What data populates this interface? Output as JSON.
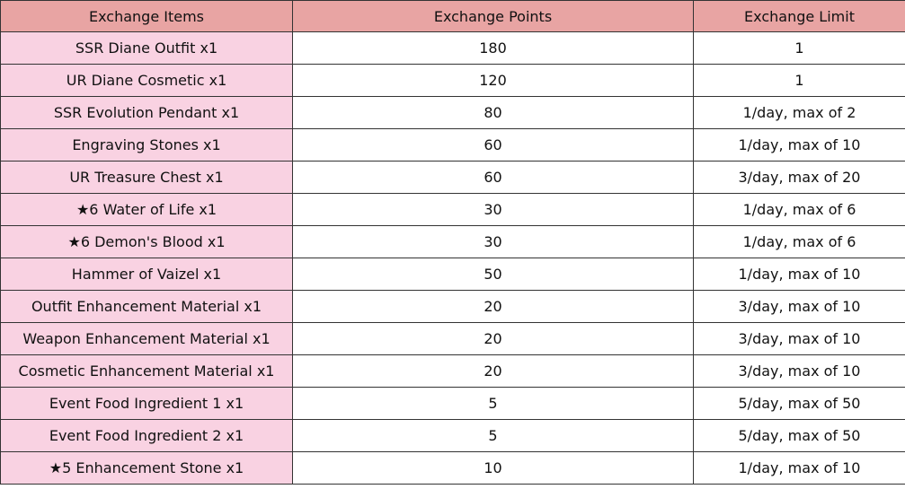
{
  "table": {
    "headers": [
      "Exchange Items",
      "Exchange Points",
      "Exchange Limit"
    ],
    "rows": [
      {
        "item": "SSR Diane Outfit x1",
        "points": "180",
        "limit": "1"
      },
      {
        "item": "UR Diane Cosmetic x1",
        "points": "120",
        "limit": "1"
      },
      {
        "item": "SSR Evolution Pendant x1",
        "points": "80",
        "limit": "1/day, max of 2"
      },
      {
        "item": "Engraving Stones x1",
        "points": "60",
        "limit": "1/day, max of 10"
      },
      {
        "item": "UR Treasure Chest x1",
        "points": "60",
        "limit": "3/day, max of 20"
      },
      {
        "item": "★6 Water of Life x1",
        "points": "30",
        "limit": "1/day, max of 6"
      },
      {
        "item": "★6 Demon's Blood x1",
        "points": "30",
        "limit": "1/day, max of 6"
      },
      {
        "item": "Hammer of Vaizel x1",
        "points": "50",
        "limit": "1/day, max of 10"
      },
      {
        "item": "Outfit Enhancement Material x1",
        "points": "20",
        "limit": "3/day, max of 10"
      },
      {
        "item": "Weapon Enhancement Material x1",
        "points": "20",
        "limit": "3/day, max of 10"
      },
      {
        "item": "Cosmetic Enhancement Material x1",
        "points": "20",
        "limit": "3/day, max of 10"
      },
      {
        "item": "Event Food Ingredient 1 x1",
        "points": "5",
        "limit": "5/day, max of 50"
      },
      {
        "item": "Event Food Ingredient 2 x1",
        "points": "5",
        "limit": "5/day, max of 50"
      },
      {
        "item": "★5 Enhancement Stone x1",
        "points": "10",
        "limit": "1/day, max of 10"
      }
    ]
  },
  "colors": {
    "header_bg": "#e8a4a3",
    "item_cell_bg": "#f9d2e2",
    "border": "#333333"
  }
}
